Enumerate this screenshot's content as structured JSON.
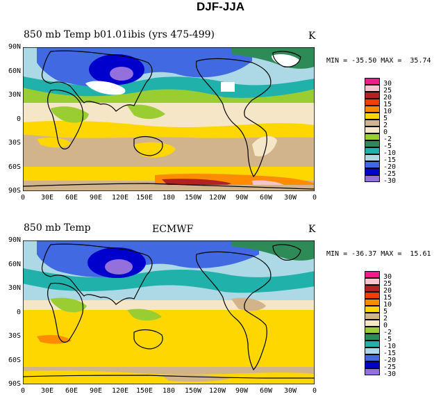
{
  "title": "DJF-JJA",
  "panels": [
    {
      "left_title": "850 mb Temp b01.01ibis (yrs 475-499)",
      "center_title": "",
      "units": "K",
      "minmax": "MIN = -35.50 MAX =  35.74"
    },
    {
      "left_title": "850 mb Temp",
      "center_title": "ECMWF",
      "units": "K",
      "minmax": "MIN = -36.37 MAX =  15.61"
    }
  ],
  "lat_labels": [
    "90N",
    "60N",
    "30N",
    "0",
    "30S",
    "60S",
    "90S"
  ],
  "lon_labels": [
    "0",
    "30E",
    "60E",
    "90E",
    "120E",
    "150E",
    "180",
    "150W",
    "120W",
    "90W",
    "60W",
    "30W",
    "0"
  ],
  "legend": {
    "labels": [
      "30",
      "25",
      "20",
      "15",
      "10",
      "5",
      "2",
      "0",
      "-2",
      "-5",
      "-10",
      "-15",
      "-20",
      "-25",
      "-30"
    ],
    "colors": [
      "#ee1c8c",
      "#f7c4cf",
      "#b22222",
      "#ee4000",
      "#ff8c00",
      "#ffd700",
      "#d2b48c",
      "#f5e6c8",
      "#9acd32",
      "#2e8b57",
      "#20b2aa",
      "#add8e6",
      "#4169e1",
      "#0000cd",
      "#9370db"
    ]
  }
}
